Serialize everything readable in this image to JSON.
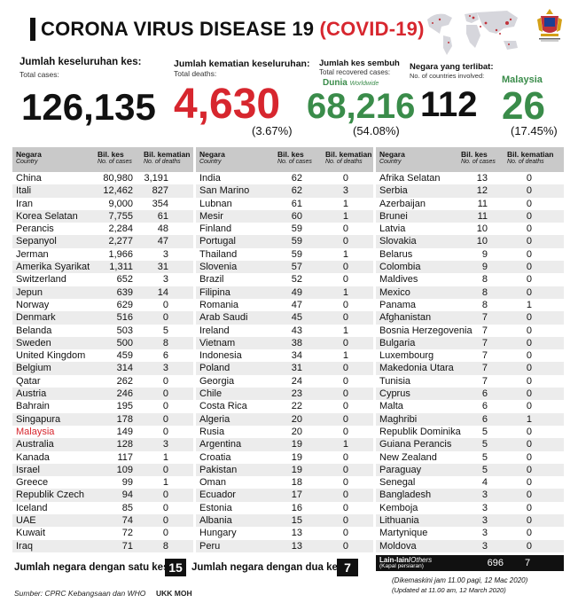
{
  "header": {
    "title_main": "CORONA VIRUS DISEASE 19",
    "title_paren": "(COVID-19)"
  },
  "stats": {
    "total_cases": {
      "label": "Jumlah keseluruhan kes:",
      "sub": "Total cases:",
      "value": "126,135"
    },
    "total_deaths": {
      "label": "Jumlah kematian keseluruhan:",
      "sub": "Total deaths:",
      "value": "4,630",
      "pct": "(3.67%)"
    },
    "recovered": {
      "label": "Jumlah kes sembuh",
      "sub": "Total recovered cases:",
      "world": "Dunia",
      "world_i": "Worldwide",
      "value": "68,216",
      "pct": "(54.08%)"
    },
    "countries": {
      "label": "Negara yang terlibat:",
      "sub": "No. of countries involved:",
      "value": "112"
    },
    "malaysia": {
      "label": "Malaysia",
      "value": "26",
      "pct": "(17.45%)"
    }
  },
  "table_headers": {
    "country": "Negara",
    "country_en": "Country",
    "cases": "Bil. kes",
    "cases_en": "No. of cases",
    "deaths": "Bil. kematian",
    "deaths_en": "No. of deaths"
  },
  "col1": [
    [
      "China",
      "80,980",
      "3,191"
    ],
    [
      "Itali",
      "12,462",
      "827"
    ],
    [
      "Iran",
      "9,000",
      "354"
    ],
    [
      "Korea Selatan",
      "7,755",
      "61"
    ],
    [
      "Perancis",
      "2,284",
      "48"
    ],
    [
      "Sepanyol",
      "2,277",
      "47"
    ],
    [
      "Jerman",
      "1,966",
      "3"
    ],
    [
      "Amerika Syarikat",
      "1,311",
      "31"
    ],
    [
      "Switzerland",
      "652",
      "3"
    ],
    [
      "Jepun",
      "639",
      "14"
    ],
    [
      "Norway",
      "629",
      "0"
    ],
    [
      "Denmark",
      "516",
      "0"
    ],
    [
      "Belanda",
      "503",
      "5"
    ],
    [
      "Sweden",
      "500",
      "8"
    ],
    [
      "United Kingdom",
      "459",
      "6"
    ],
    [
      "Belgium",
      "314",
      "3"
    ],
    [
      "Qatar",
      "262",
      "0"
    ],
    [
      "Austria",
      "246",
      "0"
    ],
    [
      "Bahrain",
      "195",
      "0"
    ],
    [
      "Singapura",
      "178",
      "0"
    ],
    [
      "Malaysia",
      "149",
      "0"
    ],
    [
      "Australia",
      "128",
      "3"
    ],
    [
      "Kanada",
      "117",
      "1"
    ],
    [
      "Israel",
      "109",
      "0"
    ],
    [
      "Greece",
      "99",
      "1"
    ],
    [
      "Republik Czech",
      "94",
      "0"
    ],
    [
      "Iceland",
      "85",
      "0"
    ],
    [
      "UAE",
      "74",
      "0"
    ],
    [
      "Kuwait",
      "72",
      "0"
    ],
    [
      "Iraq",
      "71",
      "8"
    ]
  ],
  "col2": [
    [
      "India",
      "62",
      "0"
    ],
    [
      "San Marino",
      "62",
      "3"
    ],
    [
      "Lubnan",
      "61",
      "1"
    ],
    [
      "Mesir",
      "60",
      "1"
    ],
    [
      "Finland",
      "59",
      "0"
    ],
    [
      "Portugal",
      "59",
      "0"
    ],
    [
      "Thailand",
      "59",
      "1"
    ],
    [
      "Slovenia",
      "57",
      "0"
    ],
    [
      "Brazil",
      "52",
      "0"
    ],
    [
      "Filipina",
      "49",
      "1"
    ],
    [
      "Romania",
      "47",
      "0"
    ],
    [
      "Arab Saudi",
      "45",
      "0"
    ],
    [
      "Ireland",
      "43",
      "1"
    ],
    [
      "Vietnam",
      "38",
      "0"
    ],
    [
      "Indonesia",
      "34",
      "1"
    ],
    [
      "Poland",
      "31",
      "0"
    ],
    [
      "Georgia",
      "24",
      "0"
    ],
    [
      "Chile",
      "23",
      "0"
    ],
    [
      "Costa Rica",
      "22",
      "0"
    ],
    [
      "Algeria",
      "20",
      "0"
    ],
    [
      "Rusia",
      "20",
      "0"
    ],
    [
      "Argentina",
      "19",
      "1"
    ],
    [
      "Croatia",
      "19",
      "0"
    ],
    [
      "Pakistan",
      "19",
      "0"
    ],
    [
      "Oman",
      "18",
      "0"
    ],
    [
      "Ecuador",
      "17",
      "0"
    ],
    [
      "Estonia",
      "16",
      "0"
    ],
    [
      "Albania",
      "15",
      "0"
    ],
    [
      "Hungary",
      "13",
      "0"
    ],
    [
      "Peru",
      "13",
      "0"
    ]
  ],
  "col3": [
    [
      "Afrika Selatan",
      "13",
      "0"
    ],
    [
      "Serbia",
      "12",
      "0"
    ],
    [
      "Azerbaijan",
      "11",
      "0"
    ],
    [
      "Brunei",
      "11",
      "0"
    ],
    [
      "Latvia",
      "10",
      "0"
    ],
    [
      "Slovakia",
      "10",
      "0"
    ],
    [
      "Belarus",
      "9",
      "0"
    ],
    [
      "Colombia",
      "9",
      "0"
    ],
    [
      "Maldives",
      "8",
      "0"
    ],
    [
      "Mexico",
      "8",
      "0"
    ],
    [
      "Panama",
      "8",
      "1"
    ],
    [
      "Afghanistan",
      "7",
      "0"
    ],
    [
      "Bosnia Herzegovenia",
      "7",
      "0"
    ],
    [
      "Bulgaria",
      "7",
      "0"
    ],
    [
      "Luxembourg",
      "7",
      "0"
    ],
    [
      "Makedonia Utara",
      "7",
      "0"
    ],
    [
      "Tunisia",
      "7",
      "0"
    ],
    [
      "Cyprus",
      "6",
      "0"
    ],
    [
      "Malta",
      "6",
      "0"
    ],
    [
      "Maghribi",
      "6",
      "1"
    ],
    [
      "Republik Dominika",
      "5",
      "0"
    ],
    [
      "Guiana Perancis",
      "5",
      "0"
    ],
    [
      "New Zealand",
      "5",
      "0"
    ],
    [
      "Paraguay",
      "5",
      "0"
    ],
    [
      "Senegal",
      "4",
      "0"
    ],
    [
      "Bangladesh",
      "3",
      "0"
    ],
    [
      "Kemboja",
      "3",
      "0"
    ],
    [
      "Lithuania",
      "3",
      "0"
    ],
    [
      "Martynique",
      "3",
      "0"
    ],
    [
      "Moldova",
      "3",
      "0"
    ]
  ],
  "lain": {
    "label": "Lain-lain/",
    "label_i": "Others",
    "sub": "(Kapal persiaran)",
    "cases": "696",
    "deaths": "7"
  },
  "footer": {
    "one_case_label": "Jumlah negara dengan satu kes",
    "one_case_value": "15",
    "two_case_label": "Jumlah negara dengan dua kes",
    "two_case_value": "7",
    "updated_ms": "(Dikemaskini  jam 11.00 pagi, 12 Mac 2020)",
    "updated_en": "(Updated at 11.00 am, 12 March 2020)",
    "source": "Sumber: CPRC Kebangsaan dan WHO",
    "ukk": "UKK MOH"
  },
  "colors": {
    "red": "#d7262e",
    "green": "#3a8c4a",
    "header_gray": "#c9c9c9",
    "stripe": "#ececec"
  },
  "icons": [
    "world-map-icon",
    "ministry-logo-icon"
  ]
}
